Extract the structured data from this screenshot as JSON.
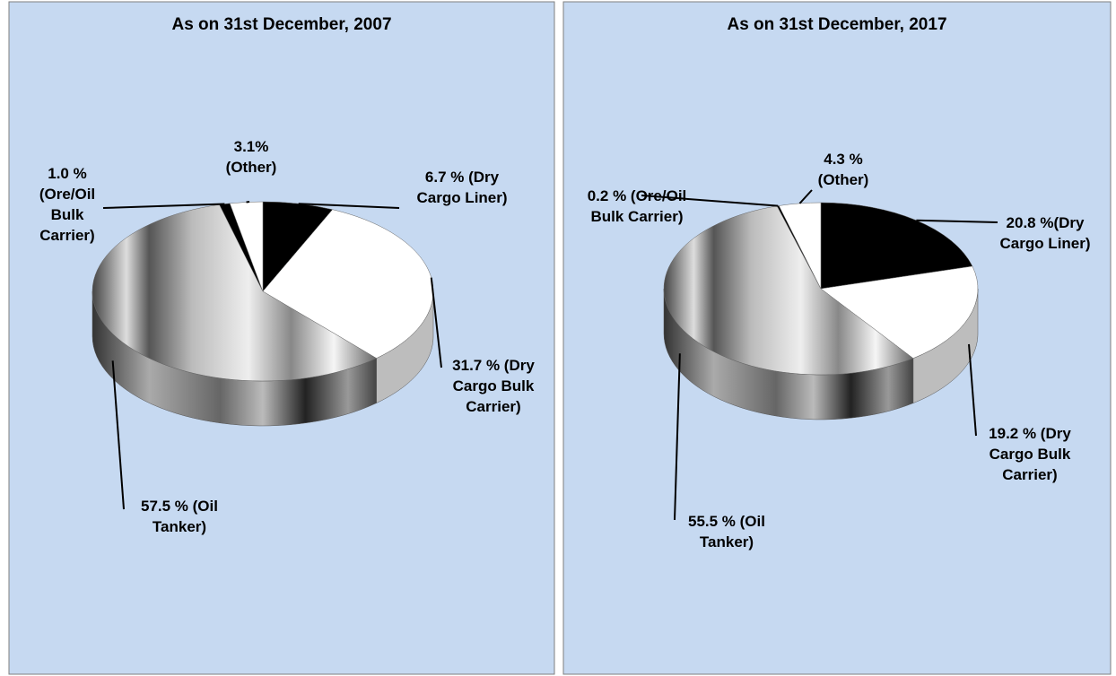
{
  "chart_data": [
    {
      "type": "pie",
      "title": "As on 31st December, 2007",
      "values": [
        6.7,
        31.7,
        57.5,
        1.0,
        3.1
      ],
      "value_labels": [
        "6.7 % (Dry Cargo Liner)",
        "31.7 % (Dry Cargo Bulk Carrier)",
        "57.5 % (Oil Tanker)",
        "1.0 % (Ore/Oil Bulk Carrier)",
        "3.1% (Other)"
      ],
      "colors": [
        "#000000",
        "#ffffff",
        "#9a9a9a",
        "#000000",
        "#ffffff"
      ]
    },
    {
      "type": "pie",
      "title": "As on 31st December, 2017",
      "values": [
        20.8,
        19.2,
        55.5,
        0.2,
        4.3
      ],
      "value_labels": [
        "20.8 %(Dry Cargo Liner)",
        "19.2 % (Dry Cargo Bulk Carrier)",
        "55.5 % (Oil Tanker)",
        "0.2 % (Ore/Oil Bulk Carrier)",
        "4.3 % (Other)"
      ],
      "colors": [
        "#000000",
        "#ffffff",
        "#9a9a9a",
        "#000000",
        "#ffffff"
      ]
    }
  ]
}
